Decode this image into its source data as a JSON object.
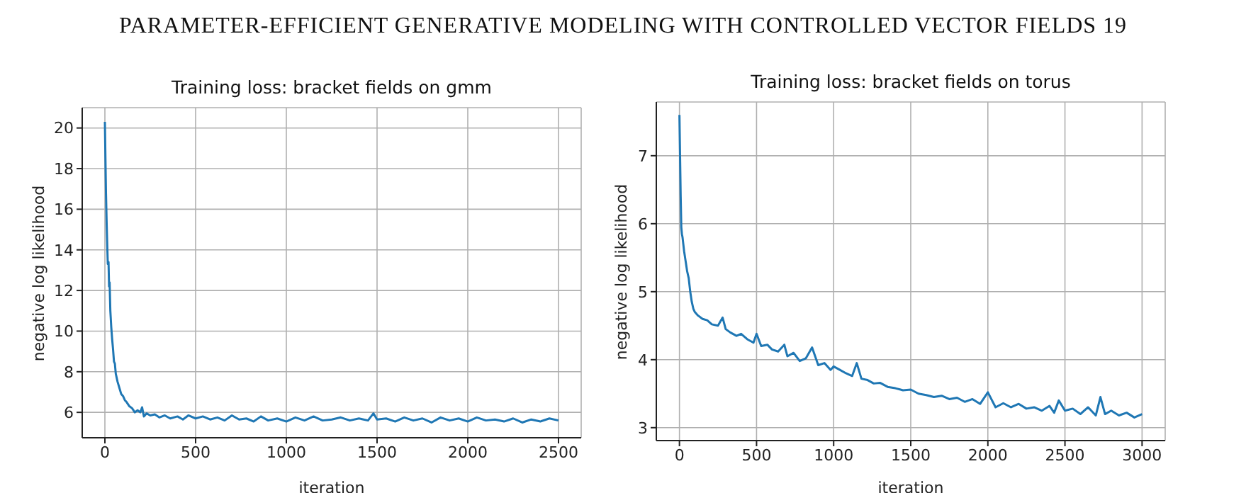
{
  "chart_data": [
    {
      "type": "line",
      "title": "Training loss: bracket fields on gmm",
      "xlabel": "iteration",
      "ylabel": "negative log likelihood",
      "annotations": [
        "PARAMETER-EFFICIENT GENERATIVE MODELING WITH CONTROLLED VECTOR FIELDS 19"
      ],
      "grid": true,
      "xlim": [
        -125,
        2625
      ],
      "ylim": [
        4.75,
        21
      ],
      "xticks": [
        0,
        500,
        1000,
        1500,
        2000,
        2500
      ],
      "yticks": [
        6,
        8,
        10,
        12,
        14,
        16,
        18,
        20
      ],
      "x": [
        0,
        3,
        6,
        10,
        13,
        16,
        20,
        23,
        26,
        30,
        35,
        40,
        45,
        50,
        55,
        60,
        70,
        80,
        90,
        100,
        110,
        120,
        135,
        150,
        165,
        180,
        195,
        205,
        215,
        230,
        250,
        275,
        300,
        330,
        360,
        400,
        430,
        460,
        500,
        540,
        580,
        620,
        660,
        700,
        740,
        780,
        820,
        860,
        900,
        950,
        1000,
        1050,
        1100,
        1150,
        1200,
        1250,
        1300,
        1350,
        1400,
        1450,
        1480,
        1500,
        1550,
        1600,
        1650,
        1700,
        1750,
        1800,
        1850,
        1900,
        1950,
        2000,
        2050,
        2100,
        2150,
        2200,
        2250,
        2300,
        2350,
        2400,
        2450,
        2500
      ],
      "series": [
        {
          "color": "#1f77b4",
          "values": [
            20.3,
            18.5,
            16.8,
            15.2,
            14.2,
            13.3,
            13.4,
            12.2,
            12.4,
            11,
            10.2,
            9.6,
            9.1,
            8.5,
            8.4,
            7.9,
            7.5,
            7.2,
            6.9,
            6.8,
            6.6,
            6.5,
            6.3,
            6.2,
            6.0,
            6.1,
            6.0,
            6.25,
            5.8,
            5.95,
            5.85,
            5.9,
            5.75,
            5.85,
            5.7,
            5.8,
            5.65,
            5.85,
            5.7,
            5.8,
            5.65,
            5.75,
            5.6,
            5.85,
            5.65,
            5.7,
            5.55,
            5.8,
            5.6,
            5.7,
            5.55,
            5.75,
            5.6,
            5.8,
            5.6,
            5.65,
            5.75,
            5.6,
            5.7,
            5.6,
            5.95,
            5.65,
            5.7,
            5.55,
            5.75,
            5.6,
            5.7,
            5.5,
            5.75,
            5.6,
            5.7,
            5.55,
            5.75,
            5.6,
            5.65,
            5.55,
            5.7,
            5.5,
            5.65,
            5.55,
            5.7,
            5.6
          ]
        }
      ]
    },
    {
      "type": "line",
      "title": "Training loss: bracket fields on torus",
      "xlabel": "iteration",
      "ylabel": "negative log likelihood",
      "grid": true,
      "xlim": [
        -150,
        3150
      ],
      "ylim": [
        2.81,
        7.79
      ],
      "xticks": [
        0,
        500,
        1000,
        1500,
        2000,
        2500,
        3000
      ],
      "yticks": [
        3,
        4,
        5,
        6,
        7
      ],
      "x": [
        0,
        4,
        8,
        12,
        16,
        20,
        25,
        30,
        40,
        50,
        60,
        70,
        80,
        90,
        100,
        120,
        150,
        180,
        210,
        250,
        280,
        300,
        330,
        370,
        400,
        440,
        480,
        500,
        530,
        570,
        600,
        640,
        680,
        700,
        740,
        780,
        820,
        860,
        900,
        940,
        980,
        1000,
        1040,
        1080,
        1120,
        1150,
        1180,
        1220,
        1260,
        1300,
        1350,
        1400,
        1450,
        1500,
        1550,
        1600,
        1650,
        1700,
        1750,
        1800,
        1850,
        1900,
        1950,
        2000,
        2050,
        2100,
        2150,
        2200,
        2250,
        2300,
        2350,
        2400,
        2430,
        2460,
        2500,
        2550,
        2600,
        2650,
        2700,
        2730,
        2760,
        2800,
        2850,
        2900,
        2950,
        3000
      ],
      "series": [
        {
          "color": "#1f77b4",
          "values": [
            7.6,
            7.0,
            6.4,
            5.95,
            5.85,
            5.8,
            5.7,
            5.6,
            5.45,
            5.3,
            5.2,
            5.0,
            4.85,
            4.75,
            4.7,
            4.65,
            4.6,
            4.58,
            4.52,
            4.5,
            4.62,
            4.45,
            4.4,
            4.35,
            4.38,
            4.3,
            4.25,
            4.38,
            4.2,
            4.22,
            4.15,
            4.12,
            4.22,
            4.05,
            4.1,
            3.98,
            4.02,
            4.18,
            3.92,
            3.95,
            3.85,
            3.9,
            3.85,
            3.8,
            3.76,
            3.95,
            3.72,
            3.7,
            3.65,
            3.66,
            3.6,
            3.58,
            3.55,
            3.56,
            3.5,
            3.48,
            3.45,
            3.47,
            3.42,
            3.44,
            3.38,
            3.42,
            3.35,
            3.52,
            3.3,
            3.36,
            3.3,
            3.35,
            3.28,
            3.3,
            3.25,
            3.32,
            3.22,
            3.4,
            3.25,
            3.28,
            3.2,
            3.3,
            3.18,
            3.45,
            3.2,
            3.25,
            3.18,
            3.22,
            3.15,
            3.2
          ]
        }
      ]
    }
  ]
}
